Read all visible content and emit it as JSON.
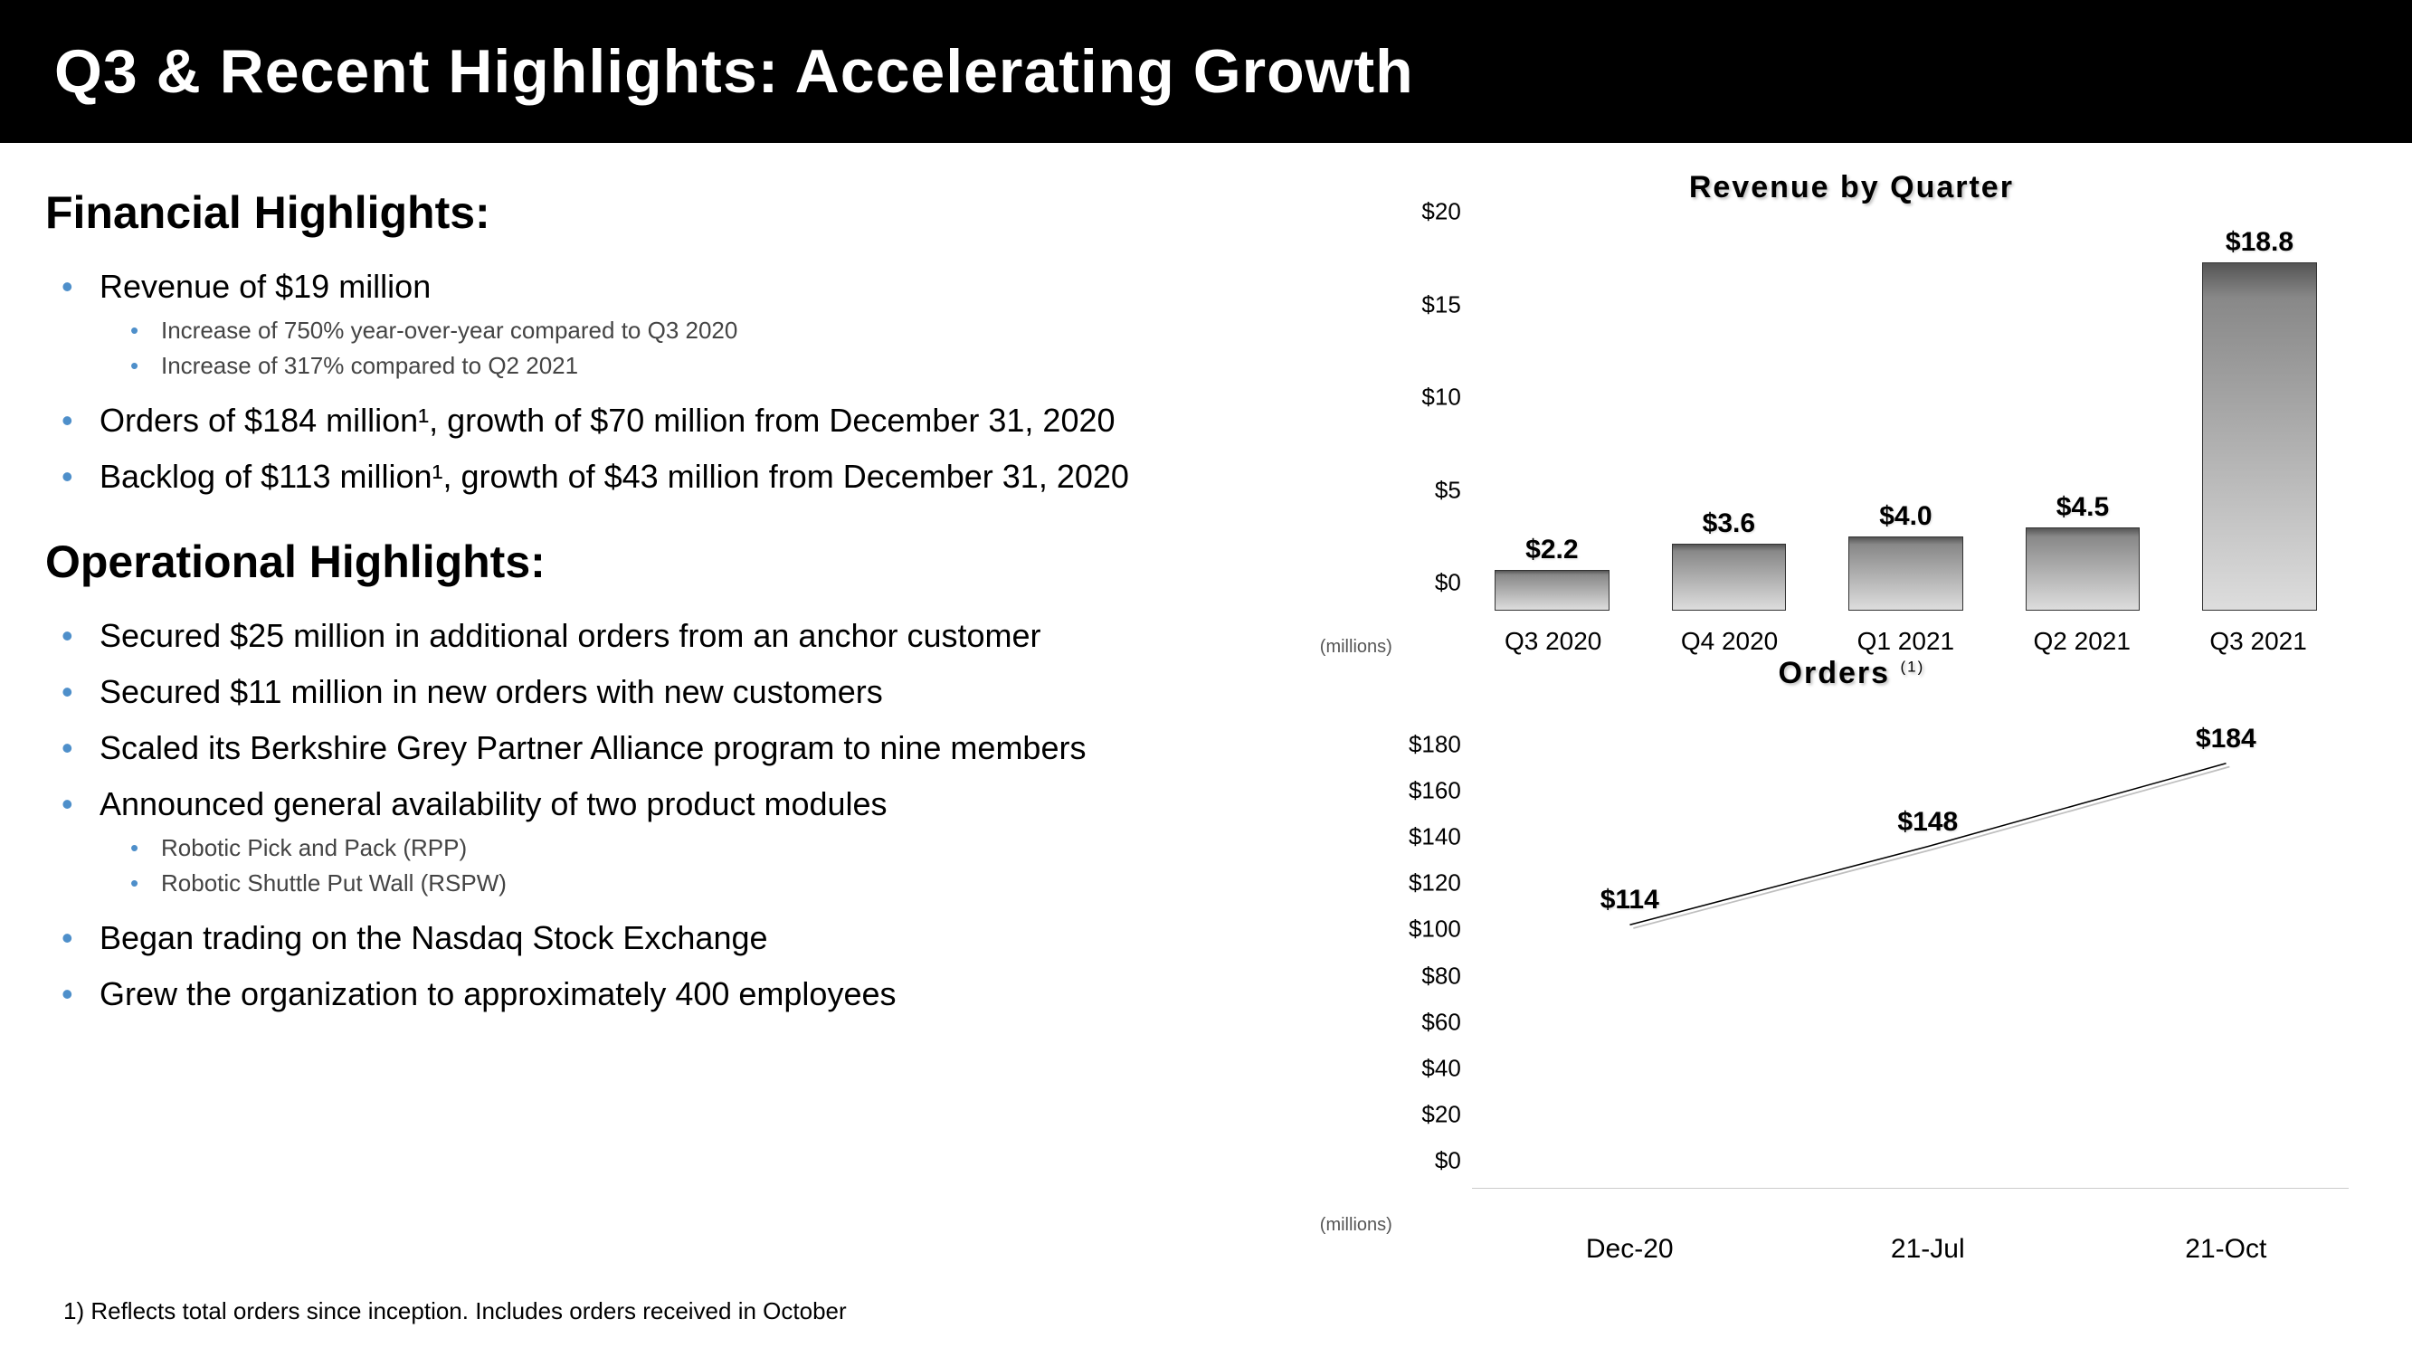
{
  "header": {
    "title": "Q3 & Recent Highlights: Accelerating Growth"
  },
  "left": {
    "financial_title": "Financial Highlights:",
    "operational_title": "Operational Highlights:",
    "bullet_color": "#4e8fca",
    "financial": [
      {
        "text": "Revenue of $19 million",
        "sub": [
          "Increase of 750% year-over-year compared to Q3 2020",
          "Increase of 317% compared to Q2 2021"
        ]
      },
      {
        "text": "Orders of $184 million¹, growth of $70 million from December 31, 2020"
      },
      {
        "text": "Backlog of $113 million¹, growth of $43 million from December 31, 2020"
      }
    ],
    "operational": [
      {
        "text": "Secured $25 million in additional orders from an anchor customer"
      },
      {
        "text": "Secured $11 million in new orders with new customers"
      },
      {
        "text": "Scaled its Berkshire Grey Partner Alliance program to nine members"
      },
      {
        "text": "Announced general availability of two product modules",
        "sub": [
          "Robotic Pick and Pack (RPP)",
          "Robotic Shuttle Put Wall (RSPW)"
        ]
      },
      {
        "text": "Began trading on the Nasdaq Stock Exchange"
      },
      {
        "text": "Grew the organization to approximately 400 employees"
      }
    ]
  },
  "revenue_chart": {
    "title": "Revenue by Quarter",
    "type": "bar",
    "y_ticks": [
      0,
      5,
      10,
      15,
      20
    ],
    "y_labels": [
      "$0",
      "$5",
      "$10",
      "$15",
      "$20"
    ],
    "y_max": 20,
    "axis_unit": "(millions)",
    "bar_gradient_top": "#555555",
    "bar_gradient_mid": "#888888",
    "bar_gradient_bottom": "#dddddd",
    "bar_border": "#333333",
    "categories": [
      "Q3 2020",
      "Q4 2020",
      "Q1 2021",
      "Q2 2021",
      "Q3 2021"
    ],
    "values": [
      2.2,
      3.6,
      4.0,
      4.5,
      18.8
    ],
    "value_labels": [
      "$2.2",
      "$3.6",
      "$4.0",
      "$4.5",
      "$18.8"
    ]
  },
  "orders_chart": {
    "title": "Orders",
    "title_sup": "(1)",
    "type": "line",
    "y_ticks": [
      0,
      20,
      40,
      60,
      80,
      100,
      120,
      140,
      160,
      180
    ],
    "y_labels": [
      "$0",
      "$20",
      "$40",
      "$60",
      "$80",
      "$100",
      "$120",
      "$140",
      "$160",
      "$180"
    ],
    "y_max": 180,
    "axis_unit": "(millions)",
    "line_color": "#000000",
    "line_width": 7,
    "x_positions_pct": [
      18,
      52,
      86
    ],
    "categories": [
      "Dec-20",
      "21-Jul",
      "21-Oct"
    ],
    "values": [
      114,
      148,
      184
    ],
    "value_labels": [
      "$114",
      "$148",
      "$184"
    ]
  },
  "footnote": "1)   Reflects total orders since inception.  Includes orders received in October"
}
